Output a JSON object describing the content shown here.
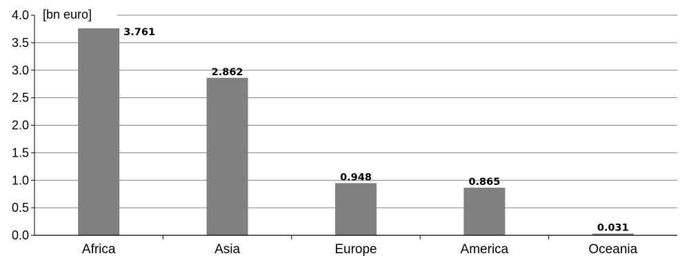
{
  "chart_data": {
    "type": "bar",
    "title": "",
    "xlabel": "",
    "ylabel": "[bn euro]",
    "categories": [
      "Africa",
      "Asia",
      "Europe",
      "America",
      "Oceania"
    ],
    "values": [
      3.761,
      2.862,
      0.948,
      0.865,
      0.031
    ],
    "data_labels": [
      "3.761",
      "2.862",
      "0.948",
      "0.865",
      "0.031"
    ],
    "y_ticks": [
      0.0,
      0.5,
      1.0,
      1.5,
      2.0,
      2.5,
      3.0,
      3.5,
      4.0
    ],
    "y_tick_labels": [
      "0.0",
      "0.5",
      "1.0",
      "1.5",
      "2.0",
      "2.5",
      "3.0",
      "3.5",
      "4.0"
    ],
    "ylim": [
      0,
      4.0
    ],
    "grid": true,
    "legend": "none",
    "colors": {
      "bar": "#808080",
      "grid": "#7f7f7f",
      "axis": "#000000"
    }
  }
}
